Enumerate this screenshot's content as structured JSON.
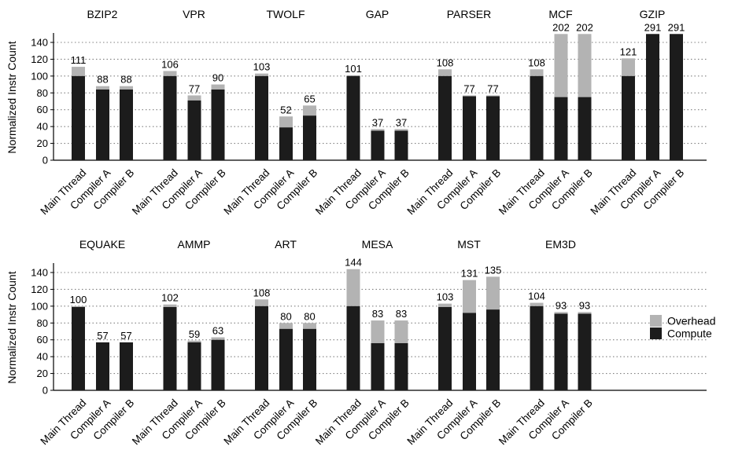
{
  "chart_data": {
    "type": "bar",
    "stacked": true,
    "ylabel": "Normalized Instr Count",
    "ylim": [
      0,
      150
    ],
    "yticks": [
      0,
      20,
      40,
      60,
      80,
      100,
      120,
      140
    ],
    "grid": "horizontal-dotted",
    "bar_labels": [
      "Main Thread",
      "Compiler A",
      "Compiler B"
    ],
    "legend": {
      "position": "right",
      "entries": [
        {
          "name": "Overhead",
          "color": "#b3b3b3"
        },
        {
          "name": "Compute",
          "color": "#1c1c1c"
        }
      ]
    },
    "colors": {
      "compute": "#1c1c1c",
      "overhead": "#b3b3b3",
      "grid": "#808080"
    },
    "panels": [
      {
        "benchmarks": [
          {
            "name": "BZIP2",
            "totals": [
              111,
              88,
              88
            ],
            "compute": [
              100,
              84,
              84
            ]
          },
          {
            "name": "VPR",
            "totals": [
              106,
              77,
              90
            ],
            "compute": [
              100,
              71,
              84
            ]
          },
          {
            "name": "TWOLF",
            "totals": [
              103,
              52,
              65
            ],
            "compute": [
              100,
              39,
              53
            ]
          },
          {
            "name": "GAP",
            "totals": [
              101,
              37,
              37
            ],
            "compute": [
              100,
              35,
              35
            ]
          },
          {
            "name": "PARSER",
            "totals": [
              108,
              77,
              77
            ],
            "compute": [
              100,
              76,
              76
            ]
          },
          {
            "name": "MCF",
            "totals": [
              108,
              202,
              202
            ],
            "compute": [
              100,
              75,
              75
            ]
          },
          {
            "name": "GZIP",
            "totals": [
              121,
              291,
              291
            ],
            "compute": [
              100,
              150,
              150
            ]
          }
        ]
      },
      {
        "benchmarks": [
          {
            "name": "EQUAKE",
            "totals": [
              100,
              57,
              57
            ],
            "compute": [
              99,
              57,
              57
            ]
          },
          {
            "name": "AMMP",
            "totals": [
              102,
              59,
              63
            ],
            "compute": [
              99,
              57,
              60
            ]
          },
          {
            "name": "ART",
            "totals": [
              108,
              80,
              80
            ],
            "compute": [
              100,
              73,
              73
            ]
          },
          {
            "name": "MESA",
            "totals": [
              144,
              83,
              83
            ],
            "compute": [
              100,
              56,
              56
            ]
          },
          {
            "name": "MST",
            "totals": [
              103,
              131,
              135
            ],
            "compute": [
              99,
              92,
              96
            ]
          },
          {
            "name": "EM3D",
            "totals": [
              104,
              93,
              93
            ],
            "compute": [
              100,
              91,
              91
            ]
          }
        ]
      }
    ]
  }
}
